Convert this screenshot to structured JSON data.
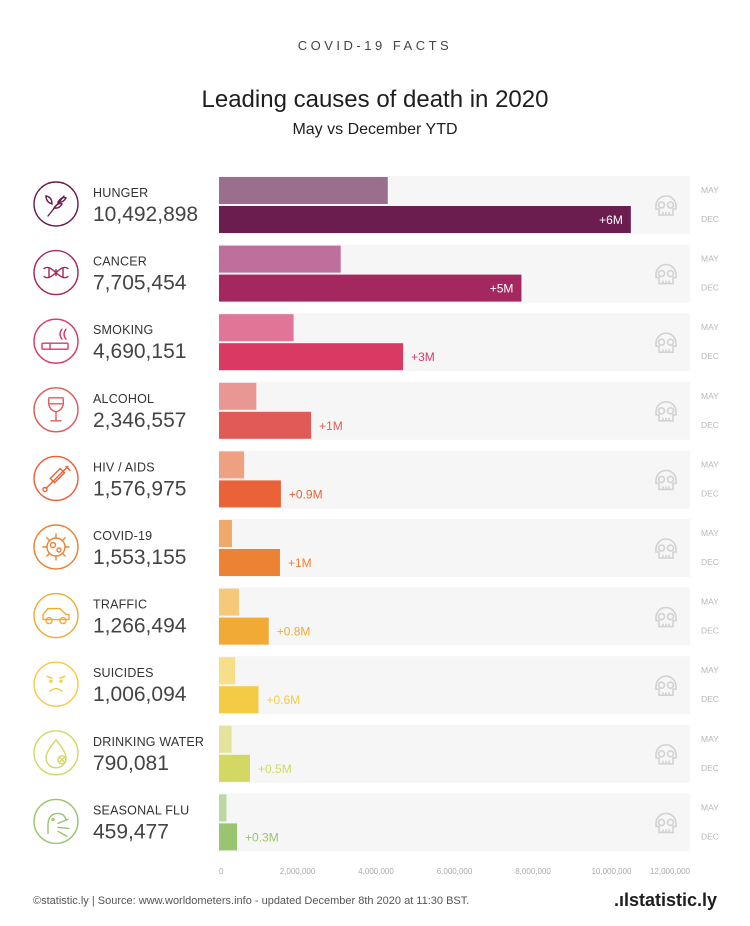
{
  "header": {
    "kicker": "COVID-19 FACTS",
    "title": "Leading causes of death in 2020",
    "subtitle": "May vs December YTD"
  },
  "chart_data": {
    "type": "bar",
    "orientation": "horizontal",
    "title": "Leading causes of death in 2020",
    "subtitle": "May vs December YTD",
    "series_names": [
      "MAY",
      "DEC"
    ],
    "xlim": [
      0,
      12000000
    ],
    "xticks": [
      0,
      2000000,
      4000000,
      6000000,
      8000000,
      10000000,
      12000000
    ],
    "xtick_labels": [
      "0",
      "2,000,000",
      "4,000,000",
      "6,000,000",
      "8,000,000",
      "10,000,000",
      "12,000,000"
    ],
    "grid": false,
    "categories": [
      {
        "key": "hunger",
        "label": "HUNGER",
        "value_label": "10,492,898",
        "may": 4300000,
        "dec": 10492898,
        "diff": "+6M",
        "color_may": "#9a6f8e",
        "color_dec": "#6b1d4f",
        "icon": "wheat-icon"
      },
      {
        "key": "cancer",
        "label": "CANCER",
        "value_label": "7,705,454",
        "may": 3100000,
        "dec": 7705454,
        "diff": "+5M",
        "color_may": "#be6f9c",
        "color_dec": "#a4275f",
        "icon": "dna-icon"
      },
      {
        "key": "smoking",
        "label": "SMOKING",
        "value_label": "4,690,151",
        "may": 1900000,
        "dec": 4690151,
        "diff": "+3M",
        "color_may": "#e07597",
        "color_dec": "#d83a64",
        "icon": "cigarette-icon"
      },
      {
        "key": "alcohol",
        "label": "ALCOHOL",
        "value_label": "2,346,557",
        "may": 950000,
        "dec": 2346557,
        "diff": "+1M",
        "color_may": "#e89794",
        "color_dec": "#e05b58",
        "icon": "wine-glass-icon"
      },
      {
        "key": "hiv",
        "label": "HIV / AIDS",
        "value_label": "1,576,975",
        "may": 640000,
        "dec": 1576975,
        "diff": "+0.9M",
        "color_may": "#ef9f82",
        "color_dec": "#ea6237",
        "icon": "syringe-icon"
      },
      {
        "key": "covid",
        "label": "COVID-19",
        "value_label": "1,553,155",
        "may": 330000,
        "dec": 1553155,
        "diff": "+1M",
        "color_may": "#f0a86b",
        "color_dec": "#ec8233",
        "icon": "virus-icon"
      },
      {
        "key": "traffic",
        "label": "TRAFFIC",
        "value_label": "1,266,494",
        "may": 510000,
        "dec": 1266494,
        "diff": "+0.8M",
        "color_may": "#f5c87a",
        "color_dec": "#f0aa35",
        "icon": "car-icon"
      },
      {
        "key": "suicides",
        "label": "SUICIDES",
        "value_label": "1,006,094",
        "may": 410000,
        "dec": 1006094,
        "diff": "+0.6M",
        "color_may": "#f7df8a",
        "color_dec": "#f4cb45",
        "icon": "sad-face-icon"
      },
      {
        "key": "water",
        "label": "DRINKING WATER",
        "value_label": "790,081",
        "may": 320000,
        "dec": 790081,
        "diff": "+0.5M",
        "color_may": "#e4e39b",
        "color_dec": "#d2d862",
        "icon": "water-drop-icon"
      },
      {
        "key": "flu",
        "label": "SEASONAL FLU",
        "value_label": "459,477",
        "may": 190000,
        "dec": 459477,
        "diff": "+0.3M",
        "color_may": "#bcd7a0",
        "color_dec": "#9ac46f",
        "icon": "sneeze-icon"
      }
    ]
  },
  "footer": {
    "source": "©statistic.ly | Source: www.worldometers.info - updated December 8th 2020 at 11:30 BST.",
    "brand": ".ılstatistic.ly"
  },
  "icons": {
    "row_end": "skull-icon"
  }
}
